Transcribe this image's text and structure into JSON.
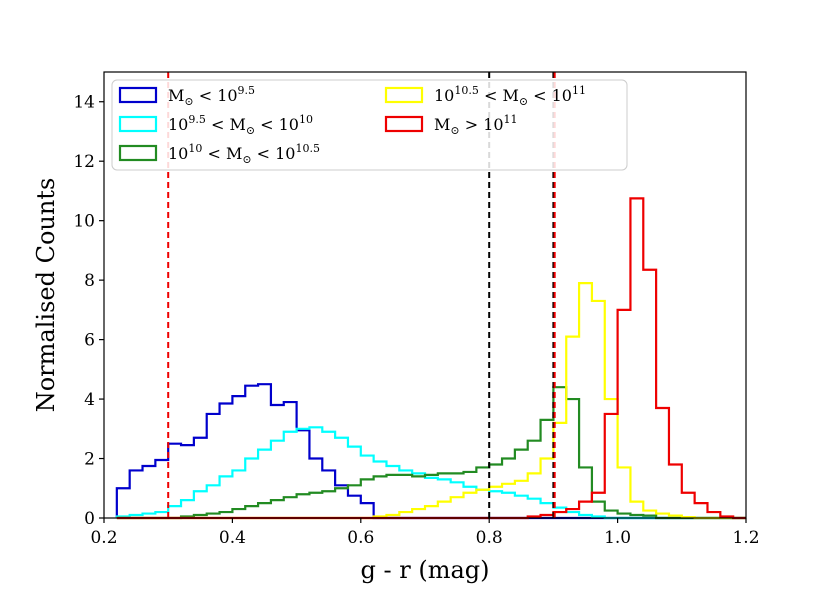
{
  "chart_data": {
    "type": "histogram",
    "title": "",
    "xlabel": "g - r (mag)",
    "ylabel": "Normalised Counts",
    "xlim": [
      0.2,
      1.2
    ],
    "ylim": [
      0,
      15
    ],
    "xticks": [
      "0.2",
      "0.4",
      "0.6",
      "0.8",
      "1.0",
      "1.2"
    ],
    "yticks": [
      "0",
      "2",
      "4",
      "6",
      "8",
      "10",
      "12",
      "14"
    ],
    "grid": false,
    "legend_placement": "top-left",
    "bin_edges": [
      0.22,
      0.24,
      0.26,
      0.28,
      0.3,
      0.32,
      0.34,
      0.36,
      0.38,
      0.4,
      0.42,
      0.44,
      0.46,
      0.48,
      0.5,
      0.52,
      0.54,
      0.56,
      0.58,
      0.6,
      0.62,
      0.64,
      0.66,
      0.68,
      0.7,
      0.72,
      0.74,
      0.76,
      0.78,
      0.8,
      0.82,
      0.84,
      0.86,
      0.88,
      0.9,
      0.92,
      0.94,
      0.96,
      0.98,
      1.0,
      1.02,
      1.04,
      1.06,
      1.08,
      1.1,
      1.12,
      1.14,
      1.16,
      1.18,
      1.2
    ],
    "series": [
      {
        "name": "M☉ < 10^9.5",
        "label_main": "M",
        "label_sub": "⊙",
        "label_rel": " < 10",
        "label_sup": "9.5",
        "color": "#0000cc",
        "values": [
          1.0,
          1.6,
          1.75,
          1.95,
          2.5,
          2.45,
          2.7,
          3.5,
          3.85,
          4.1,
          4.45,
          4.5,
          3.8,
          3.9,
          2.95,
          2.0,
          1.6,
          1.1,
          0.75,
          0.5,
          0,
          0,
          0,
          0,
          0,
          0,
          0,
          0,
          0,
          0,
          0,
          0,
          0,
          0,
          0,
          0,
          0,
          0,
          0,
          0,
          0,
          0,
          0,
          0,
          0,
          0,
          0,
          0,
          0
        ]
      },
      {
        "name": "10^9.5 < M☉ < 10^10",
        "label_pre": "10",
        "label_pre_sup": "9.5",
        "label_main": " < M",
        "label_sub": "⊙",
        "label_rel": " < 10",
        "label_sup": "10",
        "color": "#00ffff",
        "values": [
          0.05,
          0.1,
          0.15,
          0.2,
          0.4,
          0.6,
          0.9,
          1.1,
          1.4,
          1.6,
          2.0,
          2.3,
          2.6,
          2.9,
          3.0,
          3.05,
          2.9,
          2.7,
          2.4,
          2.1,
          1.9,
          1.75,
          1.6,
          1.5,
          1.35,
          1.3,
          1.2,
          1.05,
          0.95,
          0.9,
          0.85,
          0.75,
          0.65,
          0.5,
          0.35,
          0.2,
          0.1,
          0.05,
          0,
          0,
          0,
          0,
          0,
          0,
          0,
          0,
          0,
          0,
          0
        ]
      },
      {
        "name": "10^10 < M☉ < 10^10.5",
        "label_pre": "10",
        "label_pre_sup": "10",
        "label_main": " < M",
        "label_sub": "⊙",
        "label_rel": " < 10",
        "label_sup": "10.5",
        "color": "#228b22",
        "values": [
          0,
          0,
          0,
          0,
          0,
          0.05,
          0.1,
          0.15,
          0.2,
          0.3,
          0.4,
          0.5,
          0.6,
          0.7,
          0.8,
          0.85,
          0.9,
          1.0,
          1.1,
          1.3,
          1.4,
          1.45,
          1.45,
          1.4,
          1.45,
          1.5,
          1.5,
          1.55,
          1.7,
          1.8,
          2.0,
          2.3,
          2.6,
          3.3,
          4.4,
          4.0,
          1.7,
          0.55,
          0.25,
          0.15,
          0.1,
          0.08,
          0,
          0,
          0,
          0,
          0,
          0,
          0
        ]
      },
      {
        "name": "10^10.5 < M☉ < 10^11",
        "label_pre": "10",
        "label_pre_sup": "10.5",
        "label_main": " < M",
        "label_sub": "⊙",
        "label_rel": " < 10",
        "label_sup": "11",
        "color": "#ffff00",
        "values": [
          0,
          0,
          0,
          0,
          0,
          0,
          0,
          0,
          0,
          0,
          0,
          0,
          0,
          0,
          0,
          0,
          0,
          0,
          0,
          0,
          0.05,
          0.1,
          0.2,
          0.3,
          0.4,
          0.55,
          0.7,
          0.85,
          0.95,
          1.05,
          1.15,
          1.25,
          1.5,
          2.0,
          3.2,
          6.1,
          7.9,
          7.3,
          4.0,
          1.7,
          0.55,
          0.25,
          0.15,
          0.08,
          0.03,
          0,
          0,
          0,
          0
        ]
      },
      {
        "name": "M☉ > 10^11",
        "label_main": "M",
        "label_sub": "⊙",
        "label_rel": " > 10",
        "label_sup": "11",
        "color": "#ee0000",
        "values": [
          0,
          0,
          0,
          0,
          0,
          0,
          0,
          0,
          0,
          0,
          0,
          0,
          0,
          0,
          0,
          0,
          0,
          0,
          0,
          0,
          0,
          0,
          0,
          0,
          0,
          0,
          0,
          0,
          0,
          0,
          0,
          0,
          0.05,
          0.1,
          0.2,
          0.3,
          0.55,
          0.85,
          3.5,
          7.0,
          10.75,
          8.35,
          3.7,
          1.8,
          0.85,
          0.5,
          0.2,
          0.05,
          0
        ]
      }
    ],
    "vertical_lines": [
      {
        "x": 0.3,
        "color": "#ee0000"
      },
      {
        "x": 0.8,
        "color": "#000000"
      },
      {
        "x": 0.9,
        "color": "#000000"
      },
      {
        "x": 0.902,
        "color": "#ee0000"
      }
    ]
  }
}
